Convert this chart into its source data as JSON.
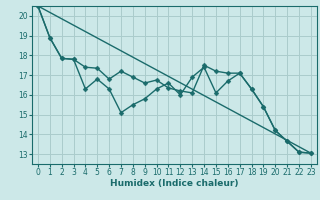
{
  "title": "",
  "xlabel": "Humidex (Indice chaleur)",
  "xlim": [
    -0.5,
    23.5
  ],
  "ylim": [
    12.5,
    20.5
  ],
  "yticks": [
    13,
    14,
    15,
    16,
    17,
    18,
    19,
    20
  ],
  "xticks": [
    0,
    1,
    2,
    3,
    4,
    5,
    6,
    7,
    8,
    9,
    10,
    11,
    12,
    13,
    14,
    15,
    16,
    17,
    18,
    19,
    20,
    21,
    22,
    23
  ],
  "bg_color": "#cce8e8",
  "grid_color": "#aacccc",
  "line_color": "#1a6b6b",
  "line1_x": [
    0,
    1,
    2,
    3,
    4,
    5,
    6,
    7,
    8,
    9,
    10,
    11,
    12,
    13,
    14,
    15,
    16,
    17,
    18,
    19,
    20,
    21,
    22,
    23
  ],
  "line1_y": [
    20.5,
    18.9,
    17.85,
    17.8,
    17.4,
    17.35,
    16.8,
    17.2,
    16.9,
    16.6,
    16.75,
    16.35,
    16.2,
    16.1,
    17.5,
    17.2,
    17.1,
    17.1,
    16.3,
    15.4,
    14.2,
    13.65,
    13.1,
    13.05
  ],
  "line2_x": [
    0,
    1,
    2,
    3,
    4,
    5,
    6,
    7,
    8,
    9,
    10,
    11,
    12,
    13,
    14,
    15,
    16,
    17,
    18,
    19,
    20,
    21,
    22,
    23
  ],
  "line2_y": [
    20.5,
    18.9,
    17.85,
    17.8,
    16.3,
    16.8,
    16.3,
    15.1,
    15.5,
    15.8,
    16.3,
    16.6,
    16.0,
    16.9,
    17.4,
    16.1,
    16.7,
    17.1,
    16.3,
    15.4,
    14.2,
    13.65,
    13.1,
    13.05
  ],
  "line3_x": [
    0,
    23
  ],
  "line3_y": [
    20.5,
    13.05
  ],
  "markersize": 2.5,
  "linewidth": 1.0
}
